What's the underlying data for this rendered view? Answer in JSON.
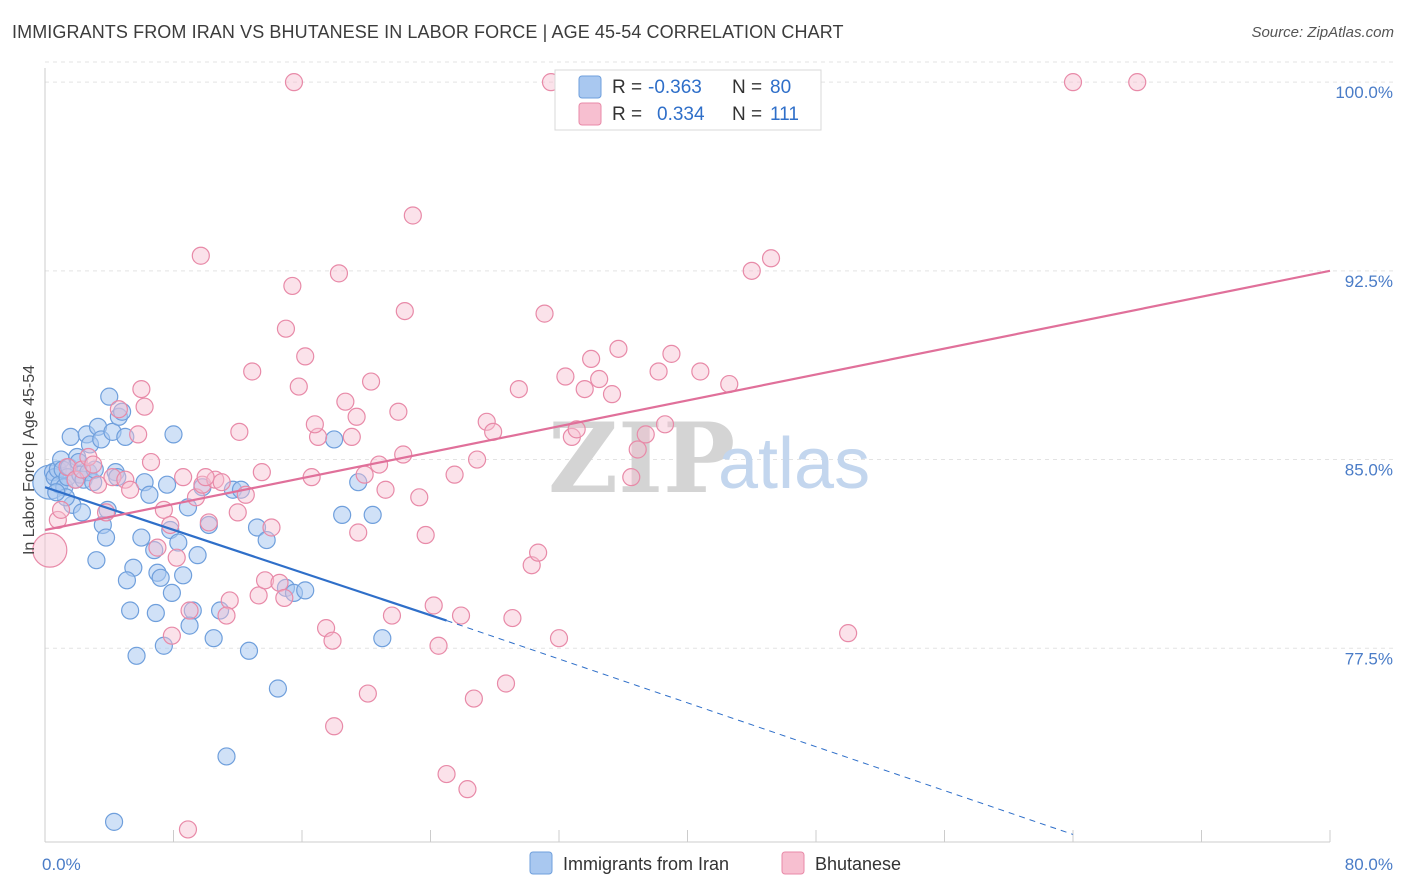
{
  "title": "IMMIGRANTS FROM IRAN VS BHUTANESE IN LABOR FORCE | AGE 45-54 CORRELATION CHART",
  "source": "Source: ZipAtlas.com",
  "watermark": {
    "zip": "ZIP",
    "atlas": "atlas"
  },
  "legend": {
    "rows": [
      {
        "r_label": "R =",
        "r_value": "-0.363",
        "n_label": "N =",
        "n_value": "80",
        "color": "#a9c8f0",
        "stroke": "#6f9fdc"
      },
      {
        "r_label": "R =",
        "r_value": "0.334",
        "n_label": "N =",
        "n_value": "111",
        "color": "#f7bfd0",
        "stroke": "#e88aa8"
      }
    ]
  },
  "bottom_legend": [
    {
      "label": "Immigrants from Iran",
      "color": "#a9c8f0",
      "stroke": "#6f9fdc"
    },
    {
      "label": "Bhutanese",
      "color": "#f7bfd0",
      "stroke": "#e88aa8"
    }
  ],
  "chart_data": {
    "type": "scatter",
    "title": "IMMIGRANTS FROM IRAN VS BHUTANESE IN LABOR FORCE | AGE 45-54 CORRELATION CHART",
    "xlabel": "",
    "ylabel": "In Labor Force | Age 45-54",
    "xlim": [
      0,
      80
    ],
    "ylim": [
      69.8,
      100.8
    ],
    "x_tick_labels": [
      "0.0%",
      "80.0%"
    ],
    "y_ticks": [
      77.5,
      85.0,
      92.5,
      100.0
    ],
    "y_tick_labels": [
      "77.5%",
      "85.0%",
      "92.5%",
      "100.0%"
    ],
    "grid": "horizontal dashed",
    "series": [
      {
        "name": "Immigrants from Iran",
        "color": "#a9c8f0",
        "stroke": "#6f9fdc",
        "trend": {
          "x0": 0.0,
          "y0": 83.9,
          "x1": 25.0,
          "y1": 78.6,
          "dashed_to_x": 64.0,
          "dashed_to_y": 70.1,
          "color": "#2f6fc9"
        },
        "points": [
          [
            0.3,
            84.1
          ],
          [
            0.5,
            84.5
          ],
          [
            0.6,
            84.3
          ],
          [
            0.8,
            84.6
          ],
          [
            0.9,
            84.0
          ],
          [
            1.0,
            85.0
          ],
          [
            1.1,
            84.6
          ],
          [
            1.2,
            83.9
          ],
          [
            1.4,
            84.3
          ],
          [
            1.5,
            84.7
          ],
          [
            1.6,
            85.9
          ],
          [
            1.7,
            83.2
          ],
          [
            1.9,
            84.2
          ],
          [
            2.0,
            85.1
          ],
          [
            2.1,
            84.9
          ],
          [
            2.2,
            84.4
          ],
          [
            2.4,
            84.2
          ],
          [
            2.6,
            86.0
          ],
          [
            2.7,
            84.5
          ],
          [
            2.8,
            85.6
          ],
          [
            3.0,
            84.1
          ],
          [
            3.1,
            84.6
          ],
          [
            3.2,
            81.0
          ],
          [
            3.3,
            86.3
          ],
          [
            3.5,
            85.8
          ],
          [
            3.6,
            82.4
          ],
          [
            3.8,
            81.9
          ],
          [
            4.0,
            87.5
          ],
          [
            4.2,
            86.1
          ],
          [
            4.4,
            84.5
          ],
          [
            4.6,
            86.7
          ],
          [
            4.8,
            86.9
          ],
          [
            5.0,
            85.9
          ],
          [
            5.3,
            79.0
          ],
          [
            5.5,
            80.7
          ],
          [
            5.7,
            77.2
          ],
          [
            6.0,
            81.9
          ],
          [
            6.2,
            84.1
          ],
          [
            6.5,
            83.6
          ],
          [
            6.8,
            81.4
          ],
          [
            7.0,
            80.5
          ],
          [
            7.2,
            80.3
          ],
          [
            7.4,
            77.6
          ],
          [
            7.6,
            84.0
          ],
          [
            7.8,
            82.2
          ],
          [
            8.0,
            86.0
          ],
          [
            8.3,
            81.7
          ],
          [
            8.6,
            80.4
          ],
          [
            8.9,
            83.1
          ],
          [
            9.2,
            79.0
          ],
          [
            9.5,
            81.2
          ],
          [
            9.8,
            83.9
          ],
          [
            10.2,
            82.4
          ],
          [
            10.5,
            77.9
          ],
          [
            10.9,
            79.0
          ],
          [
            11.3,
            73.2
          ],
          [
            11.7,
            83.8
          ],
          [
            12.2,
            83.8
          ],
          [
            12.7,
            77.4
          ],
          [
            13.2,
            82.3
          ],
          [
            13.8,
            81.8
          ],
          [
            14.5,
            75.9
          ],
          [
            15.0,
            79.9
          ],
          [
            15.5,
            79.7
          ],
          [
            16.2,
            79.8
          ],
          [
            18.0,
            85.8
          ],
          [
            18.5,
            82.8
          ],
          [
            19.5,
            84.1
          ],
          [
            20.4,
            82.8
          ],
          [
            21.0,
            77.9
          ],
          [
            2.3,
            82.9
          ],
          [
            4.5,
            84.3
          ],
          [
            3.9,
            83.0
          ],
          [
            6.9,
            78.9
          ],
          [
            1.3,
            83.5
          ],
          [
            0.7,
            83.7
          ],
          [
            5.1,
            80.2
          ],
          [
            9.0,
            78.4
          ],
          [
            7.9,
            79.7
          ],
          [
            4.3,
            70.6
          ]
        ]
      },
      {
        "name": "Bhutanese",
        "color": "#f7bfd0",
        "stroke": "#e88aa8",
        "trend": {
          "x0": 0.0,
          "y0": 82.2,
          "x1": 80.0,
          "y1": 92.5,
          "color": "#e0709a"
        },
        "points": [
          [
            0.3,
            81.4
          ],
          [
            0.8,
            82.6
          ],
          [
            1.0,
            83.0
          ],
          [
            1.4,
            84.7
          ],
          [
            1.9,
            84.2
          ],
          [
            2.3,
            84.6
          ],
          [
            2.7,
            85.1
          ],
          [
            3.0,
            84.8
          ],
          [
            3.3,
            84.0
          ],
          [
            3.8,
            82.9
          ],
          [
            4.2,
            84.3
          ],
          [
            4.6,
            87.0
          ],
          [
            5.0,
            84.2
          ],
          [
            5.3,
            83.8
          ],
          [
            5.8,
            86.0
          ],
          [
            6.2,
            87.1
          ],
          [
            6.6,
            84.9
          ],
          [
            7.0,
            81.5
          ],
          [
            7.4,
            83.0
          ],
          [
            7.8,
            82.4
          ],
          [
            8.2,
            81.1
          ],
          [
            8.6,
            84.3
          ],
          [
            9.0,
            79.0
          ],
          [
            9.4,
            83.5
          ],
          [
            9.8,
            84.0
          ],
          [
            10.2,
            82.5
          ],
          [
            10.6,
            84.2
          ],
          [
            11.0,
            84.1
          ],
          [
            11.5,
            79.4
          ],
          [
            12.0,
            82.9
          ],
          [
            12.5,
            83.6
          ],
          [
            12.9,
            88.5
          ],
          [
            13.3,
            79.6
          ],
          [
            13.7,
            80.2
          ],
          [
            14.1,
            82.3
          ],
          [
            14.6,
            80.1
          ],
          [
            15.0,
            90.2
          ],
          [
            15.4,
            91.9
          ],
          [
            15.8,
            87.9
          ],
          [
            16.2,
            89.1
          ],
          [
            16.6,
            84.3
          ],
          [
            17.0,
            85.9
          ],
          [
            17.5,
            78.3
          ],
          [
            17.9,
            77.8
          ],
          [
            18.3,
            92.4
          ],
          [
            18.7,
            87.3
          ],
          [
            19.1,
            85.9
          ],
          [
            19.5,
            82.1
          ],
          [
            19.9,
            84.4
          ],
          [
            20.3,
            88.1
          ],
          [
            20.8,
            84.8
          ],
          [
            21.2,
            83.8
          ],
          [
            21.6,
            78.8
          ],
          [
            22.0,
            86.9
          ],
          [
            22.4,
            90.9
          ],
          [
            22.9,
            94.7
          ],
          [
            23.3,
            83.5
          ],
          [
            23.7,
            82.0
          ],
          [
            24.2,
            79.2
          ],
          [
            25.0,
            72.5
          ],
          [
            25.5,
            84.4
          ],
          [
            25.9,
            78.8
          ],
          [
            26.3,
            71.9
          ],
          [
            26.7,
            75.5
          ],
          [
            27.5,
            86.5
          ],
          [
            27.9,
            86.1
          ],
          [
            28.7,
            76.1
          ],
          [
            29.1,
            78.7
          ],
          [
            29.5,
            87.8
          ],
          [
            30.3,
            80.8
          ],
          [
            30.7,
            81.3
          ],
          [
            31.1,
            90.8
          ],
          [
            32.0,
            77.9
          ],
          [
            32.4,
            88.3
          ],
          [
            32.8,
            85.9
          ],
          [
            33.6,
            87.8
          ],
          [
            34.0,
            89.0
          ],
          [
            34.5,
            88.2
          ],
          [
            35.3,
            87.6
          ],
          [
            35.7,
            89.4
          ],
          [
            36.5,
            84.3
          ],
          [
            36.9,
            85.4
          ],
          [
            37.4,
            86.0
          ],
          [
            38.2,
            88.5
          ],
          [
            38.6,
            86.4
          ],
          [
            39.0,
            89.2
          ],
          [
            40.8,
            88.5
          ],
          [
            42.6,
            88.0
          ],
          [
            44.0,
            92.5
          ],
          [
            45.2,
            93.0
          ],
          [
            50.0,
            78.1
          ],
          [
            15.5,
            100.0
          ],
          [
            31.5,
            100.0
          ],
          [
            64.0,
            100.0
          ],
          [
            68.0,
            100.0
          ],
          [
            9.7,
            93.1
          ],
          [
            24.5,
            77.6
          ],
          [
            20.1,
            75.7
          ],
          [
            12.1,
            86.1
          ],
          [
            16.8,
            86.4
          ],
          [
            6.0,
            87.8
          ],
          [
            7.9,
            78.0
          ],
          [
            10.0,
            84.3
          ],
          [
            13.5,
            84.5
          ],
          [
            18.0,
            74.4
          ],
          [
            19.4,
            86.7
          ],
          [
            11.3,
            78.8
          ],
          [
            26.9,
            85.0
          ],
          [
            33.1,
            86.2
          ],
          [
            8.9,
            70.3
          ],
          [
            22.3,
            85.2
          ],
          [
            14.9,
            79.5
          ]
        ]
      }
    ]
  }
}
